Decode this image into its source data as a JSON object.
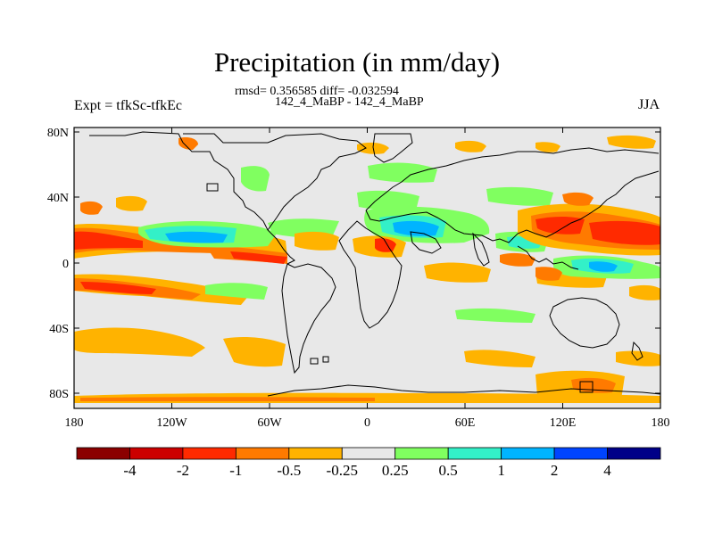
{
  "title": "Precipitation (in mm/day)",
  "stats": "rmsd= 0.356585 diff= -0.032594",
  "subtitle": "142_4_MaBP - 142_4_MaBP",
  "left_label": "Expt = tfkSc-tfkEc",
  "season": "JJA",
  "axes": {
    "lat_ticks": [
      "80N",
      "40N",
      "0",
      "40S",
      "80S"
    ],
    "lon_ticks": [
      "180",
      "120W",
      "60W",
      "0",
      "60E",
      "120E",
      "180"
    ]
  },
  "colorbar": {
    "labels": [
      "-4",
      "-2",
      "-1",
      "-0.5",
      "-0.25",
      "0.25",
      "0.5",
      "1",
      "2",
      "4"
    ],
    "colors": [
      "#8b0000",
      "#cc0000",
      "#ff2a00",
      "#ff7a00",
      "#ffb300",
      "#e8e8e8",
      "#80ff60",
      "#33f0c8",
      "#00b4ff",
      "#0044ff",
      "#000088"
    ]
  },
  "colors": {
    "background": "#e8e8e8",
    "coast": "#000000"
  }
}
